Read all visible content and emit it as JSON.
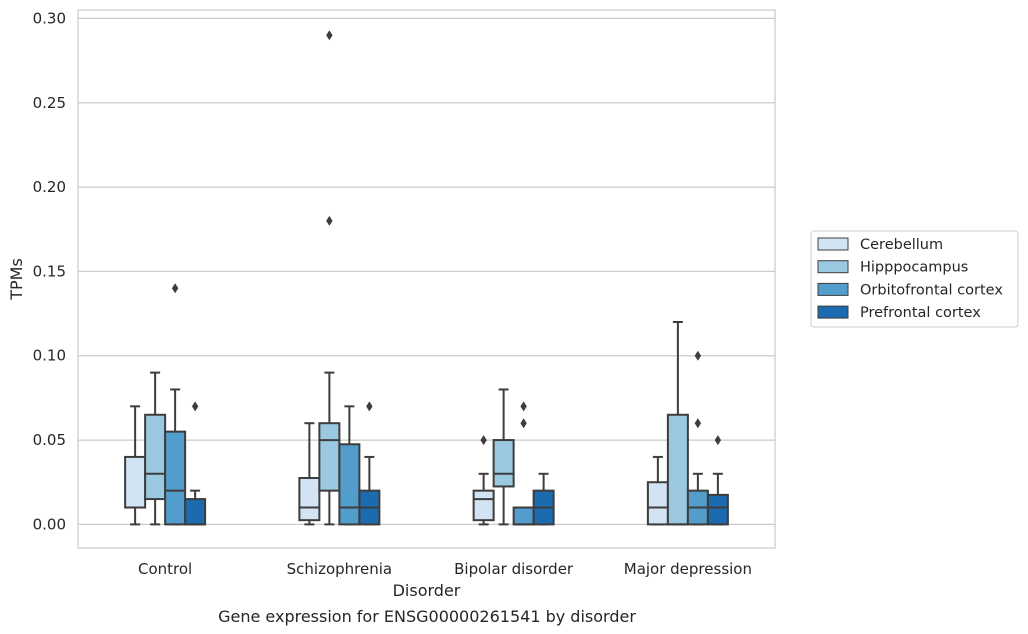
{
  "chart_data": {
    "type": "box",
    "title": "",
    "caption": "Gene expression for ENSG00000261541 by disorder",
    "xlabel": "Disorder",
    "ylabel": "TPMs",
    "ylim": [
      -0.014,
      0.305
    ],
    "yticks": [
      0.0,
      0.05,
      0.1,
      0.15,
      0.2,
      0.25,
      0.3
    ],
    "ytick_labels": [
      "0.00",
      "0.05",
      "0.10",
      "0.15",
      "0.20",
      "0.25",
      "0.30"
    ],
    "grid": "horizontal",
    "legend_position": "right, outside",
    "categories": [
      "Control",
      "Schizophrenia",
      "Bipolar disorder",
      "Major depression"
    ],
    "series": [
      {
        "name": "Cerebellum",
        "color": "#d2e3f3",
        "boxes": [
          {
            "whisker_low": 0.0,
            "q1": 0.01,
            "median": 0.01,
            "q3": 0.04,
            "whisker_high": 0.07,
            "outliers": []
          },
          {
            "whisker_low": 0.0,
            "q1": 0.0025,
            "median": 0.01,
            "q3": 0.0275,
            "whisker_high": 0.06,
            "outliers": []
          },
          {
            "whisker_low": 0.0,
            "q1": 0.0025,
            "median": 0.015,
            "q3": 0.02,
            "whisker_high": 0.03,
            "outliers": [
              0.05
            ]
          },
          {
            "whisker_low": 0.0,
            "q1": 0.0,
            "median": 0.01,
            "q3": 0.025,
            "whisker_high": 0.04,
            "outliers": []
          }
        ]
      },
      {
        "name": "Hipppocampus",
        "color": "#9ac8e0",
        "boxes": [
          {
            "whisker_low": 0.0,
            "q1": 0.015,
            "median": 0.03,
            "q3": 0.065,
            "whisker_high": 0.09,
            "outliers": []
          },
          {
            "whisker_low": 0.0,
            "q1": 0.02,
            "median": 0.05,
            "q3": 0.06,
            "whisker_high": 0.09,
            "outliers": [
              0.18,
              0.29
            ]
          },
          {
            "whisker_low": 0.0,
            "q1": 0.0225,
            "median": 0.03,
            "q3": 0.05,
            "whisker_high": 0.08,
            "outliers": []
          },
          {
            "whisker_low": 0.0,
            "q1": 0.0,
            "median": 0.0,
            "q3": 0.065,
            "whisker_high": 0.12,
            "outliers": []
          }
        ]
      },
      {
        "name": "Orbitofrontal cortex",
        "color": "#529dcc",
        "boxes": [
          {
            "whisker_low": 0.0,
            "q1": 0.0,
            "median": 0.02,
            "q3": 0.055,
            "whisker_high": 0.08,
            "outliers": [
              0.14
            ]
          },
          {
            "whisker_low": 0.0,
            "q1": 0.0,
            "median": 0.01,
            "q3": 0.0475,
            "whisker_high": 0.07,
            "outliers": []
          },
          {
            "whisker_low": 0.0,
            "q1": 0.0,
            "median": 0.0,
            "q3": 0.01,
            "whisker_high": 0.01,
            "outliers": [
              0.06,
              0.07
            ]
          },
          {
            "whisker_low": 0.0,
            "q1": 0.0,
            "median": 0.01,
            "q3": 0.02,
            "whisker_high": 0.03,
            "outliers": [
              0.06,
              0.1
            ]
          }
        ]
      },
      {
        "name": "Prefrontal cortex",
        "color": "#1c6aaf",
        "boxes": [
          {
            "whisker_low": 0.0,
            "q1": 0.0,
            "median": 0.0,
            "q3": 0.015,
            "whisker_high": 0.02,
            "outliers": [
              0.07
            ]
          },
          {
            "whisker_low": 0.0,
            "q1": 0.0,
            "median": 0.01,
            "q3": 0.02,
            "whisker_high": 0.04,
            "outliers": [
              0.07
            ]
          },
          {
            "whisker_low": 0.0,
            "q1": 0.0,
            "median": 0.01,
            "q3": 0.02,
            "whisker_high": 0.03,
            "outliers": []
          },
          {
            "whisker_low": 0.0,
            "q1": 0.0,
            "median": 0.01,
            "q3": 0.0175,
            "whisker_high": 0.03,
            "outliers": [
              0.05
            ]
          }
        ]
      }
    ]
  }
}
